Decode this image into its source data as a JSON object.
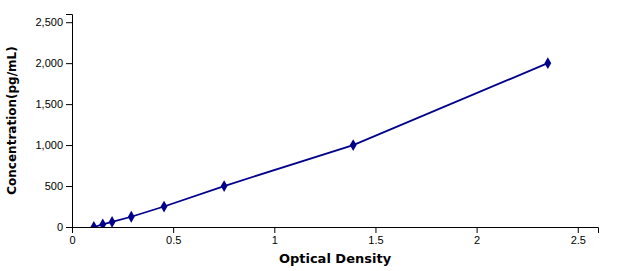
{
  "chart_data": {
    "type": "line",
    "x": [
      0.108,
      0.152,
      0.198,
      0.293,
      0.455,
      0.752,
      1.39,
      2.352
    ],
    "values": [
      0,
      31.25,
      62.5,
      125,
      250,
      500,
      1000,
      2000
    ],
    "color": "#00008B",
    "marker": "diamond",
    "line_style": "solid",
    "xlabel": "Optical Density",
    "ylabel": "Concentration(pg/mL)",
    "xlim": [
      0.0,
      2.6
    ],
    "ylim": [
      0,
      2600
    ],
    "xticks": [
      0,
      0.5,
      1,
      1.5,
      2,
      2.5
    ],
    "yticks": [
      0,
      500,
      {
        "value": 1000,
        "label": "1,000"
      },
      {
        "value": 1500,
        "label": "1,500"
      },
      {
        "value": 2000,
        "label": "2,000"
      },
      {
        "value": 2500,
        "label": "2,500"
      }
    ],
    "grid": false
  }
}
